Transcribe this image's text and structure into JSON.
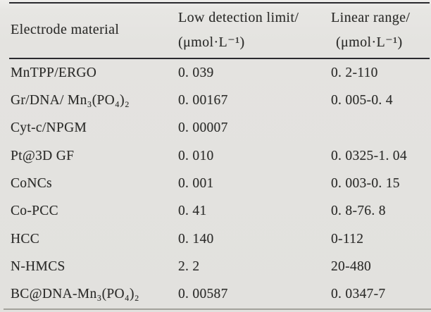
{
  "table": {
    "header": {
      "col1": {
        "line1": "Electrode material"
      },
      "col2": {
        "line1": "Low detection limit/",
        "line2": "(μmol·L⁻¹)"
      },
      "col3": {
        "line1": "Linear range/",
        "line2": "(μmol·L⁻¹)"
      }
    },
    "rows": [
      {
        "material": "MnTPP/ERGO",
        "limit": "0. 039",
        "range": "0. 2-110"
      },
      {
        "material": "Gr/DNA/ Mn₃(PO₄)₂",
        "limit": "0. 00167",
        "range": "0. 005-0. 4"
      },
      {
        "material": "Cyt-c/NPGM",
        "limit": "0. 00007",
        "range": ""
      },
      {
        "material": "Pt@3D GF",
        "limit": "0. 010",
        "range": "0. 0325-1. 04"
      },
      {
        "material": "CoNCs",
        "limit": "0. 001",
        "range": "0. 003-0. 15"
      },
      {
        "material": "Co-PCC",
        "limit": "0. 41",
        "range": "0. 8-76. 8"
      },
      {
        "material": "HCC",
        "limit": "0. 140",
        "range": "0-112"
      },
      {
        "material": "N-HMCS",
        "limit": "2. 2",
        "range": "20-480"
      },
      {
        "material": "BC@DNA-Mn₃(PO₄)₂",
        "limit": "0. 00587",
        "range": "0. 0347-7"
      }
    ]
  },
  "colors": {
    "background": "#e5e4e1",
    "text": "#2d2d2b",
    "rule_dark": "#2a2a2e",
    "rule_light": "#a3a29b"
  }
}
